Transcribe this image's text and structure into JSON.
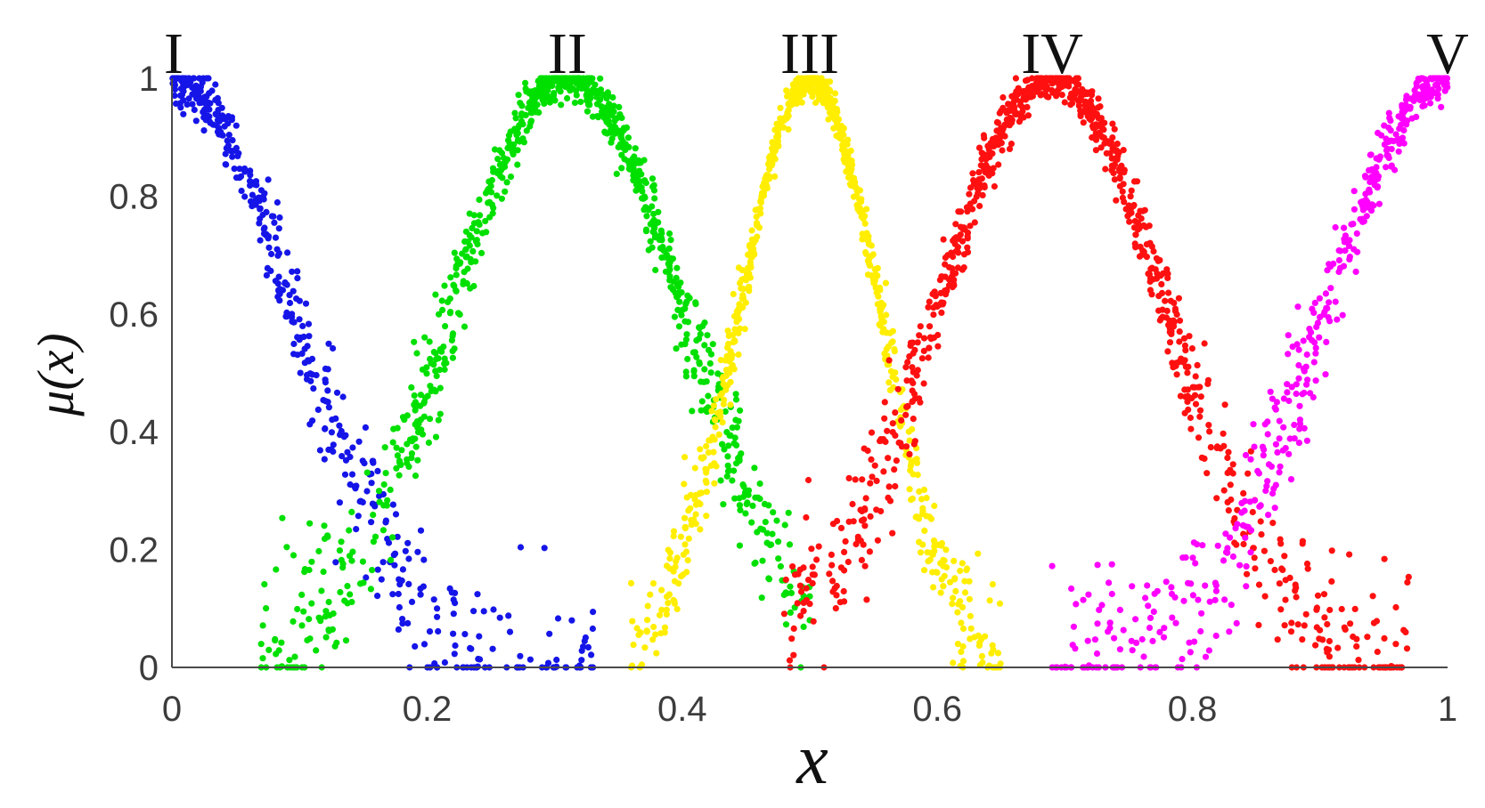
{
  "chart_data": {
    "type": "scatter",
    "title": "",
    "xlabel": "x",
    "ylabel": "μ(x)",
    "xlim": [
      0,
      1
    ],
    "ylim": [
      0,
      1
    ],
    "xticks": [
      "0",
      "0.2",
      "0.4",
      "0.6",
      "0.8",
      "1"
    ],
    "yticks": [
      "0",
      "0.2",
      "0.4",
      "0.6",
      "0.8",
      "1"
    ],
    "grid": false,
    "legend": "none",
    "peak_labels": [
      {
        "text": "I",
        "x": 0.0
      },
      {
        "text": "II",
        "x": 0.31
      },
      {
        "text": "III",
        "x": 0.5
      },
      {
        "text": "IV",
        "x": 0.69
      },
      {
        "text": "V",
        "x": 1.0
      }
    ],
    "series": [
      {
        "color": "#1515e8",
        "center": 0.0,
        "width": 0.095,
        "shape": "right-half",
        "points": 450,
        "spread": 0.055,
        "x_range": [
          0.0,
          0.33
        ],
        "approx_curve": [
          [
            0.0,
            1.0
          ],
          [
            0.05,
            0.91
          ],
          [
            0.1,
            0.68
          ],
          [
            0.15,
            0.38
          ],
          [
            0.2,
            0.15
          ],
          [
            0.25,
            0.05
          ],
          [
            0.3,
            0.01
          ]
        ]
      },
      {
        "color": "#00e000",
        "center": 0.31,
        "width": 0.09,
        "shape": "bell",
        "points": 900,
        "spread": 0.05,
        "x_range": [
          0.07,
          0.5
        ],
        "approx_curve": [
          [
            0.15,
            0.1
          ],
          [
            0.2,
            0.32
          ],
          [
            0.25,
            0.63
          ],
          [
            0.31,
            1.0
          ],
          [
            0.35,
            0.79
          ],
          [
            0.4,
            0.44
          ],
          [
            0.45,
            0.18
          ]
        ]
      },
      {
        "color": "#ffee00",
        "center": 0.5,
        "width": 0.055,
        "shape": "bell",
        "points": 800,
        "spread": 0.035,
        "x_range": [
          0.36,
          0.65
        ],
        "approx_curve": [
          [
            0.4,
            0.08
          ],
          [
            0.45,
            0.37
          ],
          [
            0.5,
            1.0
          ],
          [
            0.55,
            0.6
          ],
          [
            0.6,
            0.12
          ],
          [
            0.64,
            0.02
          ]
        ]
      },
      {
        "color": "#ff1010",
        "center": 0.69,
        "width": 0.09,
        "shape": "bell",
        "points": 900,
        "spread": 0.05,
        "x_range": [
          0.48,
          0.97
        ],
        "approx_curve": [
          [
            0.55,
            0.09
          ],
          [
            0.6,
            0.36
          ],
          [
            0.65,
            0.78
          ],
          [
            0.69,
            1.0
          ],
          [
            0.75,
            0.7
          ],
          [
            0.8,
            0.33
          ],
          [
            0.85,
            0.09
          ]
        ]
      },
      {
        "color": "#ff00ff",
        "center": 1.0,
        "width": 0.095,
        "shape": "left-half",
        "points": 450,
        "spread": 0.055,
        "x_range": [
          0.69,
          1.0
        ],
        "approx_curve": [
          [
            0.7,
            0.01
          ],
          [
            0.75,
            0.05
          ],
          [
            0.8,
            0.15
          ],
          [
            0.85,
            0.38
          ],
          [
            0.9,
            0.68
          ],
          [
            0.95,
            0.91
          ],
          [
            1.0,
            1.0
          ]
        ]
      }
    ]
  }
}
